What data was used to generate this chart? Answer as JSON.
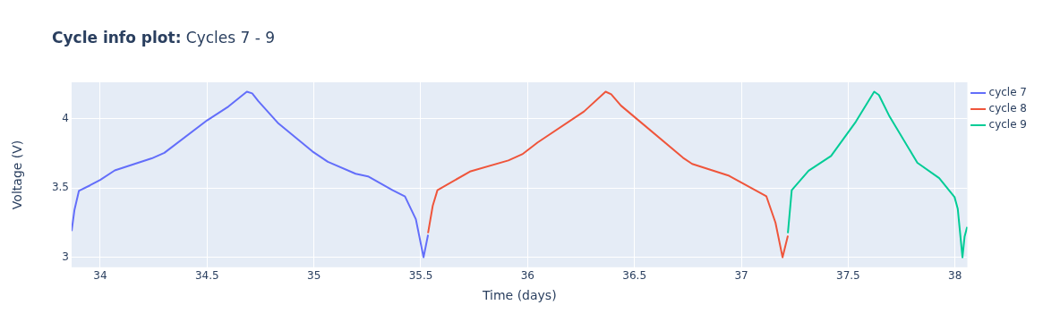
{
  "chart_data": {
    "type": "line",
    "title": "Cycle info plot: Cycles 7 - 9",
    "xlabel": "Time (days)",
    "ylabel": "Voltage (V)",
    "xlim": [
      33.866,
      38.058
    ],
    "xticks": [
      34,
      34.5,
      35,
      35.5,
      36,
      36.5,
      37,
      37.5,
      38
    ],
    "ylim": [
      2.928,
      4.265
    ],
    "yticks": [
      3,
      3.5,
      4
    ],
    "grid": true,
    "legend": "top right",
    "series": [
      {
        "name": "cycle 7",
        "color": "#636efa",
        "x": [
          33.866,
          33.879,
          33.9,
          33.952,
          34.0,
          34.068,
          34.241,
          34.3,
          34.5,
          34.6,
          34.686,
          34.711,
          34.74,
          34.834,
          34.993,
          35.065,
          35.195,
          35.253,
          35.368,
          35.426,
          35.477,
          35.513,
          35.534
        ],
        "values": [
          3.19,
          3.34,
          3.48,
          3.52,
          3.56,
          3.628,
          3.715,
          3.755,
          3.99,
          4.09,
          4.197,
          4.185,
          4.128,
          3.967,
          3.765,
          3.69,
          3.604,
          3.585,
          3.485,
          3.44,
          3.275,
          3.0,
          3.163
        ]
      },
      {
        "name": "cycle 8",
        "color": "#ef553b",
        "x": [
          35.534,
          35.556,
          35.578,
          35.73,
          35.91,
          35.975,
          36.047,
          36.264,
          36.365,
          36.391,
          36.437,
          36.727,
          36.77,
          36.943,
          37.117,
          37.16,
          37.193,
          37.218
        ],
        "values": [
          3.175,
          3.373,
          3.485,
          3.62,
          3.7,
          3.745,
          3.83,
          4.054,
          4.197,
          4.178,
          4.096,
          3.72,
          3.675,
          3.589,
          3.442,
          3.25,
          3.0,
          3.156
        ]
      },
      {
        "name": "cycle 9",
        "color": "#00cc96",
        "x": [
          37.218,
          37.236,
          37.315,
          37.42,
          37.536,
          37.622,
          37.644,
          37.694,
          37.824,
          37.926,
          37.998,
          38.013,
          38.035,
          38.045,
          38.057
        ],
        "values": [
          3.175,
          3.485,
          3.626,
          3.732,
          3.98,
          4.197,
          4.173,
          4.017,
          3.683,
          3.572,
          3.435,
          3.35,
          3.0,
          3.15,
          3.22
        ]
      }
    ]
  }
}
